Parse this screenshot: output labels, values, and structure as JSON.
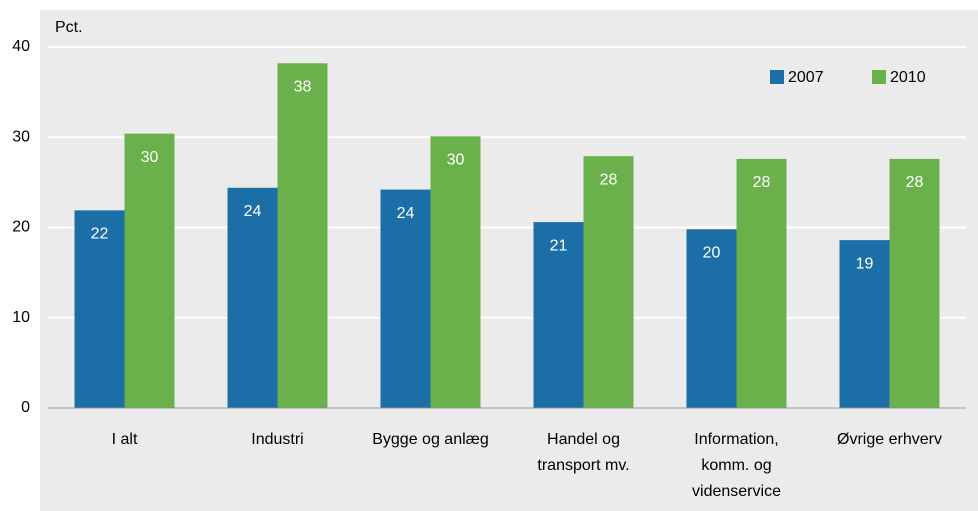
{
  "chart_data": {
    "type": "bar",
    "y_label": "Pct.",
    "categories": [
      "I alt",
      "Industri",
      "Bygge og anlæg",
      "Handel og\ntransport mv.",
      "Information,\nkomm. og\nvidenservice",
      "Øvrige erhverv"
    ],
    "series": [
      {
        "name": "2007",
        "color": "#1b6fa6",
        "values": [
          21.9,
          24.4,
          24.2,
          20.6,
          19.8,
          18.6
        ],
        "value_labels": [
          "22",
          "24",
          "24",
          "21",
          "20",
          "19"
        ]
      },
      {
        "name": "2010",
        "color": "#6ab14c",
        "values": [
          30.4,
          38.2,
          30.1,
          27.9,
          27.6,
          27.6
        ],
        "value_labels": [
          "30",
          "38",
          "30",
          "28",
          "28",
          "28"
        ]
      }
    ],
    "ylim": [
      0,
      40
    ],
    "yticks": [
      0,
      10,
      20,
      30,
      40
    ],
    "grid": true,
    "legend": "top-right"
  }
}
